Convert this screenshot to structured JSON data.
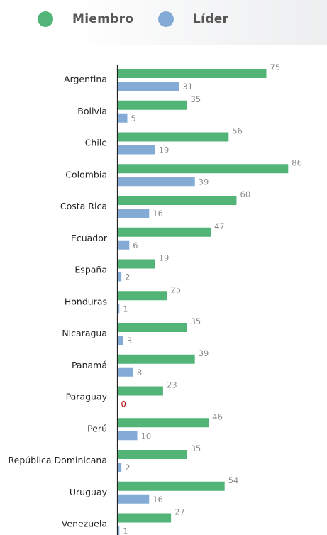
{
  "legend": [
    {
      "label": "Miembro",
      "color": "#52b577"
    },
    {
      "label": "Líder",
      "color": "#84abd6"
    }
  ],
  "chart_data": {
    "type": "bar",
    "orientation": "horizontal",
    "categories": [
      "Argentina",
      "Bolivia",
      "Chile",
      "Colombia",
      "Costa Rica",
      "Ecuador",
      "España",
      "Honduras",
      "Nicaragua",
      "Panamá",
      "Paraguay",
      "Perú",
      "República Dominicana",
      "Uruguay",
      "Venezuela"
    ],
    "series": [
      {
        "name": "Miembro",
        "color": "#52b577",
        "values": [
          75,
          35,
          56,
          86,
          60,
          47,
          19,
          25,
          35,
          39,
          23,
          46,
          35,
          54,
          27
        ]
      },
      {
        "name": "Líder",
        "color": "#84abd6",
        "values": [
          31,
          5,
          19,
          39,
          16,
          6,
          2,
          1,
          3,
          8,
          0,
          10,
          2,
          16,
          1
        ]
      }
    ],
    "xlim": [
      0,
      90
    ],
    "zero_label_color": "#b00000",
    "legend_position": "top",
    "grid": false
  }
}
